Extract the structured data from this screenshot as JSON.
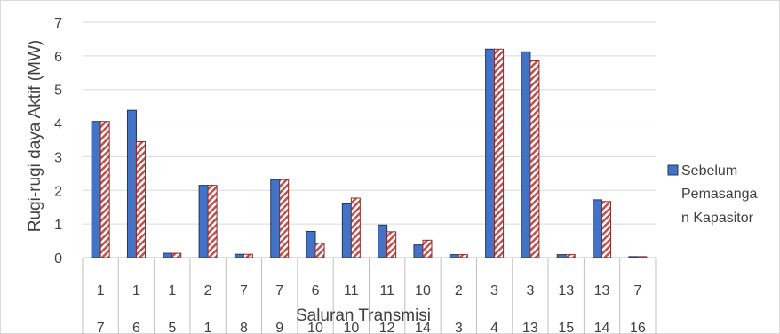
{
  "chart_data": {
    "type": "bar",
    "xlabel": "Saluran Transmisi",
    "ylabel": "Rugi-rugi daya Aktif (MW)",
    "ylim": [
      0,
      7
    ],
    "yticks": [
      0,
      1,
      2,
      3,
      4,
      5,
      6,
      7
    ],
    "grid": true,
    "legend_position": "right",
    "categories": [
      [
        "1",
        "7"
      ],
      [
        "1",
        "6"
      ],
      [
        "1",
        "5"
      ],
      [
        "2",
        "1"
      ],
      [
        "7",
        "8"
      ],
      [
        "7",
        "9"
      ],
      [
        "6",
        "10"
      ],
      [
        "11",
        "10"
      ],
      [
        "11",
        "12"
      ],
      [
        "10",
        "14"
      ],
      [
        "2",
        "3"
      ],
      [
        "3",
        "4"
      ],
      [
        "3",
        "13"
      ],
      [
        "13",
        "15"
      ],
      [
        "13",
        "14"
      ],
      [
        "7",
        "16"
      ]
    ],
    "series": [
      {
        "name": "Sebelum Pemasangan Kapasitor",
        "color": "#4472C4",
        "values": [
          4.05,
          4.38,
          0.13,
          2.15,
          0.1,
          2.32,
          0.78,
          1.6,
          0.97,
          0.38,
          0.09,
          6.2,
          6.12,
          0.09,
          1.72,
          0.03
        ]
      },
      {
        "color": "#C0504D",
        "pattern": "diagonal-stripe",
        "values": [
          4.05,
          3.45,
          0.13,
          2.15,
          0.1,
          2.32,
          0.43,
          1.77,
          0.77,
          0.52,
          0.09,
          6.2,
          5.85,
          0.09,
          1.67,
          0.03
        ]
      }
    ],
    "legend_lines": [
      "Sebelum",
      "Pemasanga",
      "n Kapasitor"
    ]
  }
}
